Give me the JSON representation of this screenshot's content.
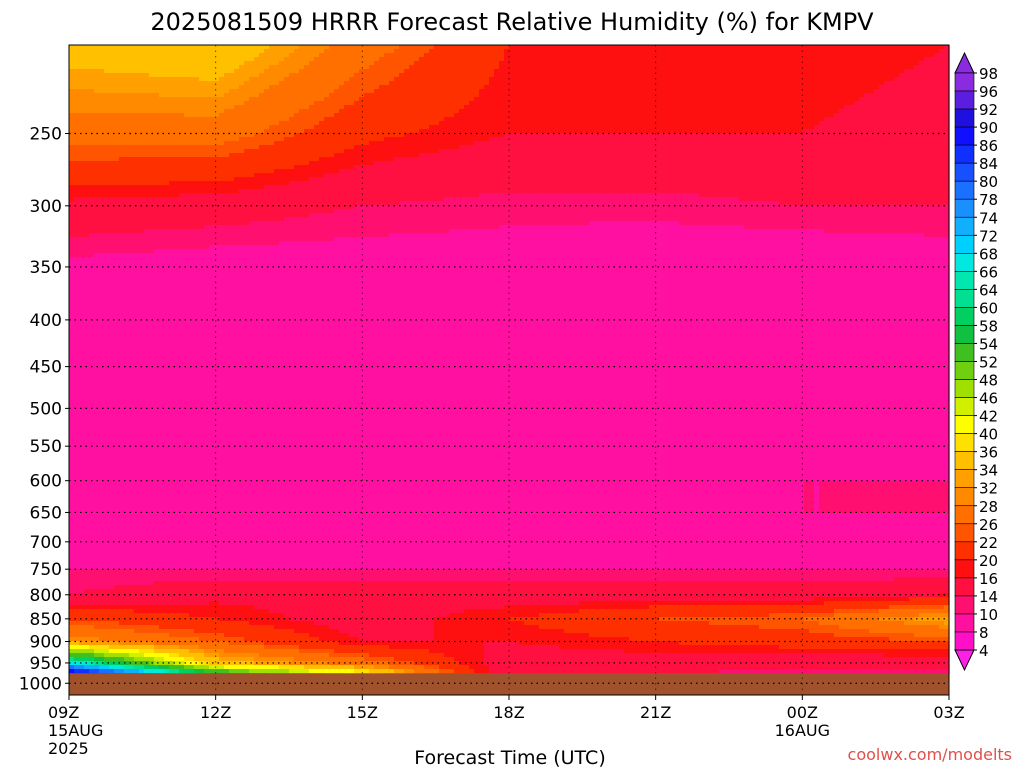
{
  "chart_data": {
    "type": "heatmap",
    "title": "2025081509 HRRR Forecast Relative Humidity (%) for KMPV",
    "xlabel": "Forecast Time (UTC)",
    "ylabel": "",
    "x_ticks": [
      {
        "label": "09Z",
        "sub": [
          "15AUG",
          "2025"
        ],
        "hour": 0
      },
      {
        "label": "12Z",
        "sub": [],
        "hour": 3
      },
      {
        "label": "15Z",
        "sub": [],
        "hour": 6
      },
      {
        "label": "18Z",
        "sub": [],
        "hour": 9
      },
      {
        "label": "21Z",
        "sub": [],
        "hour": 12
      },
      {
        "label": "00Z",
        "sub": [
          "16AUG"
        ],
        "hour": 15
      },
      {
        "label": "03Z",
        "sub": [],
        "hour": 18
      }
    ],
    "xlim": [
      0,
      18
    ],
    "y_ticks": [
      250,
      300,
      350,
      400,
      450,
      500,
      550,
      600,
      650,
      700,
      750,
      800,
      850,
      900,
      950,
      1000
    ],
    "ylim": [
      200,
      1030
    ],
    "y_scale": "log",
    "ground_level_hpa": 975,
    "colorbar": {
      "labels": [
        98,
        96,
        92,
        90,
        86,
        84,
        80,
        78,
        74,
        72,
        68,
        66,
        64,
        60,
        58,
        54,
        52,
        48,
        46,
        42,
        40,
        36,
        34,
        32,
        28,
        26,
        22,
        20,
        16,
        14,
        10,
        8,
        4
      ],
      "colors": [
        "#8a2be2",
        "#5a1ee0",
        "#2010e0",
        "#1010ff",
        "#1030ff",
        "#1850ff",
        "#1a70ff",
        "#1a90ff",
        "#10b0ff",
        "#00d0ff",
        "#00e8e0",
        "#00e8b0",
        "#00e090",
        "#00d060",
        "#10c040",
        "#40c020",
        "#70d010",
        "#a0e000",
        "#d0f000",
        "#ffff00",
        "#ffe000",
        "#ffc000",
        "#ffa000",
        "#ff8a00",
        "#ff7000",
        "#ff5500",
        "#ff3000",
        "#ff1010",
        "#ff1040",
        "#ff1070",
        "#ff10a0",
        "#ff10c8",
        "#ff20e8"
      ]
    },
    "series": [
      {
        "hour": 0,
        "rh": [
          [
            200,
            38
          ],
          [
            250,
            30
          ],
          [
            300,
            19
          ],
          [
            350,
            13
          ],
          [
            400,
            12
          ],
          [
            450,
            12
          ],
          [
            500,
            11
          ],
          [
            550,
            13
          ],
          [
            600,
            13
          ],
          [
            650,
            13
          ],
          [
            700,
            12
          ],
          [
            750,
            14
          ],
          [
            800,
            16
          ],
          [
            850,
            26
          ],
          [
            900,
            34
          ],
          [
            950,
            72
          ],
          [
            975,
            96
          ]
        ]
      },
      {
        "hour": 3,
        "rh": [
          [
            200,
            40
          ],
          [
            250,
            30
          ],
          [
            300,
            18
          ],
          [
            350,
            12
          ],
          [
            400,
            11
          ],
          [
            450,
            11
          ],
          [
            500,
            12
          ],
          [
            550,
            13
          ],
          [
            600,
            13
          ],
          [
            650,
            13
          ],
          [
            700,
            12
          ],
          [
            750,
            14
          ],
          [
            800,
            19
          ],
          [
            850,
            22
          ],
          [
            900,
            28
          ],
          [
            950,
            38
          ],
          [
            975,
            60
          ]
        ]
      },
      {
        "hour": 6,
        "rh": [
          [
            200,
            30
          ],
          [
            250,
            23
          ],
          [
            300,
            16
          ],
          [
            350,
            12
          ],
          [
            400,
            10
          ],
          [
            450,
            10
          ],
          [
            500,
            12
          ],
          [
            550,
            13
          ],
          [
            600,
            13
          ],
          [
            650,
            13
          ],
          [
            700,
            12
          ],
          [
            750,
            14
          ],
          [
            800,
            19
          ],
          [
            850,
            18
          ],
          [
            900,
            20
          ],
          [
            950,
            30
          ],
          [
            975,
            44
          ]
        ]
      },
      {
        "hour": 9,
        "rh": [
          [
            200,
            22
          ],
          [
            250,
            20
          ],
          [
            300,
            15
          ],
          [
            350,
            12
          ],
          [
            400,
            10
          ],
          [
            450,
            10
          ],
          [
            500,
            12
          ],
          [
            550,
            13
          ],
          [
            600,
            13
          ],
          [
            650,
            13
          ],
          [
            700,
            12
          ],
          [
            750,
            14
          ],
          [
            800,
            18
          ],
          [
            850,
            22
          ],
          [
            900,
            20
          ],
          [
            950,
            18
          ],
          [
            975,
            16
          ]
        ]
      },
      {
        "hour": 12,
        "rh": [
          [
            200,
            22
          ],
          [
            250,
            20
          ],
          [
            300,
            15
          ],
          [
            350,
            11
          ],
          [
            400,
            10
          ],
          [
            450,
            10
          ],
          [
            500,
            10
          ],
          [
            550,
            13
          ],
          [
            600,
            13
          ],
          [
            650,
            14
          ],
          [
            700,
            12
          ],
          [
            750,
            14
          ],
          [
            800,
            18
          ],
          [
            850,
            26
          ],
          [
            900,
            22
          ],
          [
            950,
            18
          ],
          [
            975,
            16
          ]
        ]
      },
      {
        "hour": 15,
        "rh": [
          [
            200,
            22
          ],
          [
            250,
            20
          ],
          [
            300,
            16
          ],
          [
            350,
            11
          ],
          [
            400,
            10
          ],
          [
            450,
            10
          ],
          [
            500,
            10
          ],
          [
            550,
            13
          ],
          [
            600,
            14
          ],
          [
            650,
            14
          ],
          [
            700,
            12
          ],
          [
            750,
            14
          ],
          [
            800,
            18
          ],
          [
            850,
            28
          ],
          [
            900,
            24
          ],
          [
            950,
            17
          ],
          [
            975,
            15
          ]
        ]
      },
      {
        "hour": 18,
        "rh": [
          [
            200,
            20
          ],
          [
            250,
            18
          ],
          [
            300,
            16
          ],
          [
            350,
            12
          ],
          [
            400,
            10
          ],
          [
            450,
            10
          ],
          [
            500,
            11
          ],
          [
            550,
            13
          ],
          [
            600,
            14
          ],
          [
            650,
            14
          ],
          [
            700,
            12
          ],
          [
            750,
            14
          ],
          [
            800,
            20
          ],
          [
            850,
            36
          ],
          [
            900,
            26
          ],
          [
            950,
            17
          ],
          [
            975,
            15
          ]
        ]
      }
    ]
  },
  "credit": "coolwx.com/modelts"
}
